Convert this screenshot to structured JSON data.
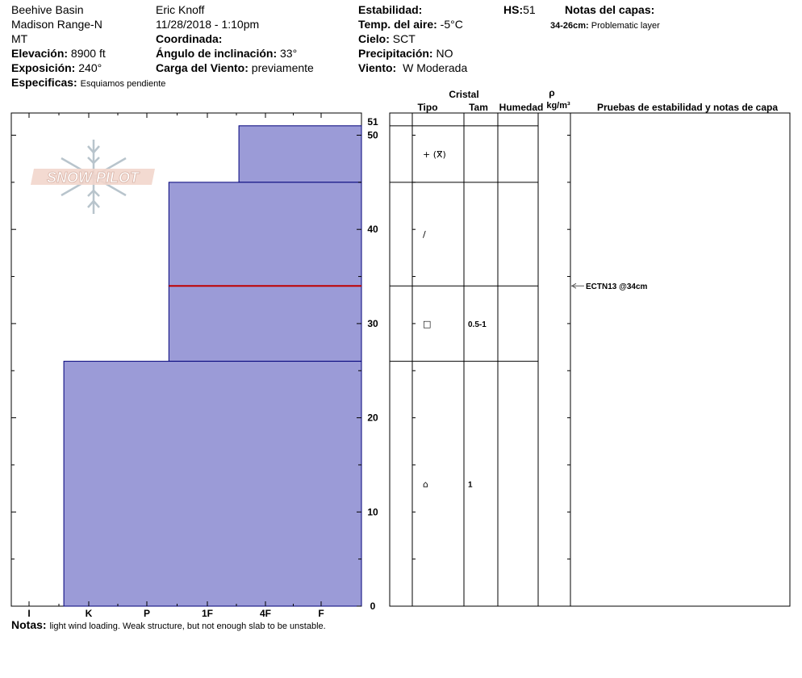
{
  "header": {
    "col1": {
      "location": "Beehive Basin",
      "range": "Madison Range-N",
      "state": "MT",
      "elevation_label": "Elevación:",
      "elevation": "8900 ft",
      "aspect_label": "Exposición:",
      "aspect": "240°",
      "specifics_label": "Especificas:",
      "specifics": "Esquiamos pendiente"
    },
    "col2": {
      "observer": "Eric Knoff",
      "datetime": "11/28/2018 - 1:10pm",
      "coord_label": "Coordinada:",
      "coord": "",
      "slope_label": "Ángulo de inclinación:",
      "slope": "33°",
      "wind_load_label": "Carga del Viento:",
      "wind_load": "previamente"
    },
    "col3": {
      "stability_label": "Estabilidad:",
      "stability": "",
      "air_temp_label": "Temp. del aire:",
      "air_temp": "-5°C",
      "sky_label": "Cielo:",
      "sky": "SCT",
      "precip_label": "Precipitación:",
      "precip": "NO",
      "wind_label": "Viento:",
      "wind": "W Moderada"
    },
    "hs_label": "HS:",
    "hs": "51",
    "layer_notes_label": "Notas del capas:",
    "layer_notes": [
      {
        "range": "34-26cm:",
        "text": "Problematic layer"
      }
    ]
  },
  "logo": {
    "text": "SNOW PILOT"
  },
  "table_headers": {
    "cristal": "Cristal",
    "tipo": "Tipo",
    "tam": "Tam",
    "humedad": "Humedad",
    "rho": "ρ",
    "density": "kg/m³",
    "tests": "Pruebas de estabilidad y notas de capa"
  },
  "notes": {
    "label": "Notas:",
    "text": "light wind loading. Weak structure, but not enough slab to be unstable."
  },
  "chart_data": {
    "type": "bar",
    "title": "",
    "xlabel": "",
    "ylabel": "",
    "hardness_categories": [
      "I",
      "K",
      "P",
      "1F",
      "4F",
      "F"
    ],
    "ylim": [
      0,
      51
    ],
    "y_ticks": [
      0,
      10,
      20,
      30,
      40,
      50
    ],
    "y_top_label": "51",
    "layers": [
      {
        "top": 51,
        "bottom": 45,
        "hardness_level": 0.35,
        "crystal_symbol": "+ (ⴳ)",
        "size": ""
      },
      {
        "top": 45,
        "bottom": 34,
        "hardness_level": 0.55,
        "crystal_symbol": "/",
        "size": ""
      },
      {
        "top": 34,
        "bottom": 26,
        "hardness_level": 0.55,
        "crystal_symbol": "□",
        "size": "0.5-1"
      },
      {
        "top": 26,
        "bottom": 0,
        "hardness_level": 0.85,
        "crystal_symbol": "⌂",
        "size": "1"
      }
    ],
    "weak_layer_depth": 34,
    "stability_tests": [
      {
        "depth": 34,
        "text": "ECTN13 @34cm"
      }
    ],
    "colors": {
      "bar": "#9b9bd7",
      "bar_edge": "#00007a",
      "weak_line": "#c00000"
    }
  }
}
